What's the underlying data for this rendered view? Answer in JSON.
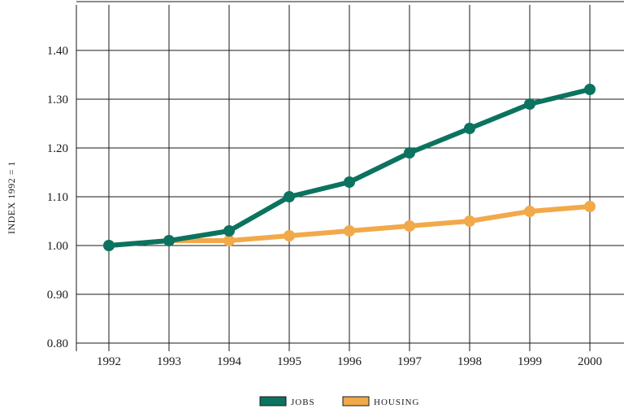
{
  "chart_data": {
    "type": "line",
    "title": "",
    "xlabel": "",
    "ylabel": "INDEX 1992 = 1",
    "categories": [
      "1992",
      "1993",
      "1994",
      "1995",
      "1996",
      "1997",
      "1998",
      "1999",
      "2000"
    ],
    "ylim": [
      0.8,
      1.4
    ],
    "yticks": [
      "0.80",
      "0.90",
      "1.00",
      "1.10",
      "1.20",
      "1.30",
      "1.40"
    ],
    "grid": true,
    "legend_position": "bottom-center",
    "series": [
      {
        "name": "JOBS",
        "color": "#0b735f",
        "values": [
          1.0,
          1.01,
          1.03,
          1.1,
          1.13,
          1.19,
          1.24,
          1.29,
          1.32
        ]
      },
      {
        "name": "HOUSING",
        "color": "#f2a94a",
        "values": [
          1.0,
          1.01,
          1.01,
          1.02,
          1.03,
          1.04,
          1.05,
          1.07,
          1.08
        ]
      }
    ]
  }
}
